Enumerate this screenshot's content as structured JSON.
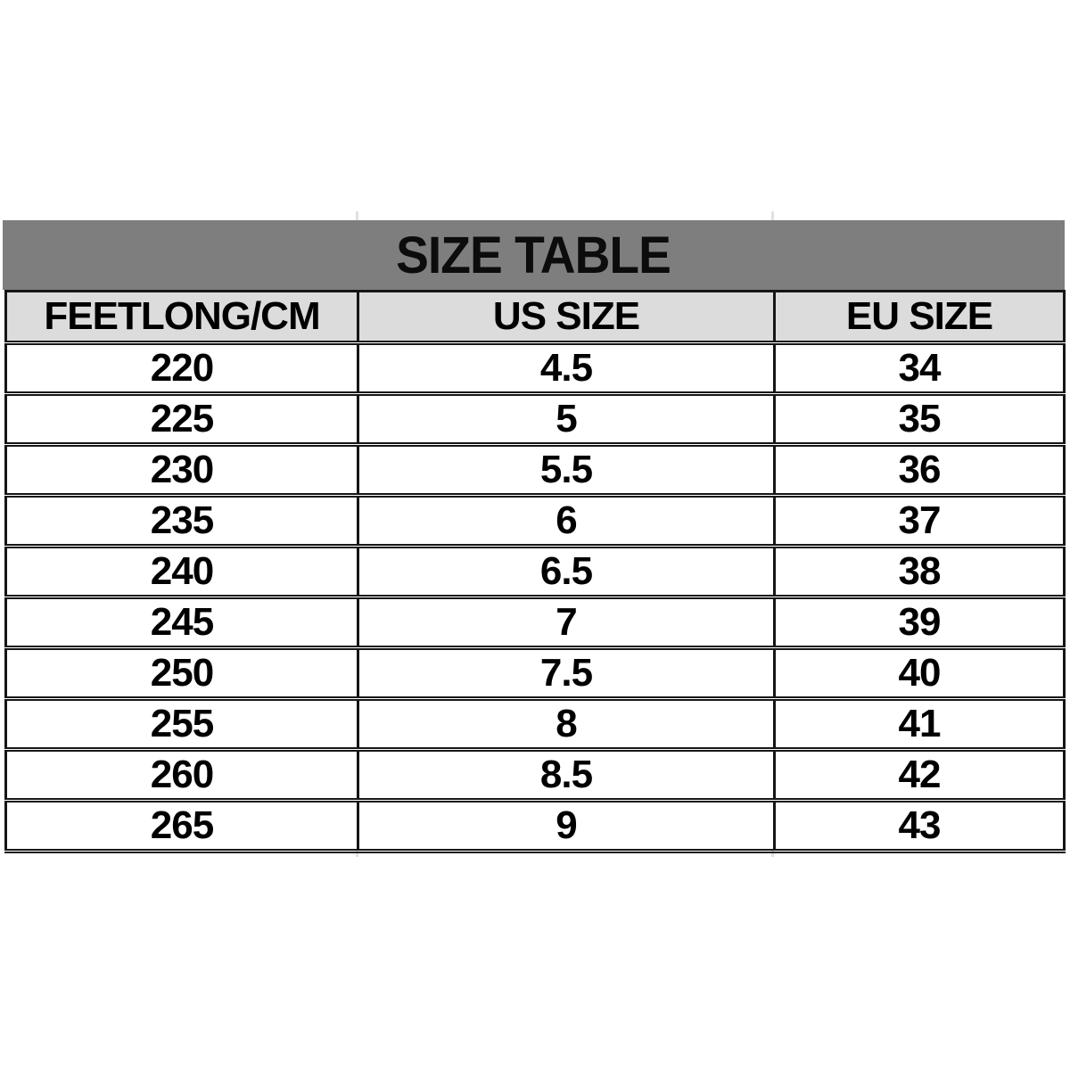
{
  "chart_data": {
    "type": "table",
    "title": "SIZE TABLE",
    "columns": [
      "FEETLONG/CM",
      "US SIZE",
      "EU SIZE"
    ],
    "rows": [
      [
        "220",
        "4.5",
        "34"
      ],
      [
        "225",
        "5",
        "35"
      ],
      [
        "230",
        "5.5",
        "36"
      ],
      [
        "235",
        "6",
        "37"
      ],
      [
        "240",
        "6.5",
        "38"
      ],
      [
        "245",
        "7",
        "39"
      ],
      [
        "250",
        "7.5",
        "40"
      ],
      [
        "255",
        "8",
        "41"
      ],
      [
        "260",
        "8.5",
        "42"
      ],
      [
        "265",
        "9",
        "43"
      ]
    ],
    "layout": {
      "legend": "none",
      "grid": "ruled table, dark double horizontal rules, solid vertical dividers"
    }
  },
  "colors": {
    "banner_background": "#7e7e7e",
    "header_row_background": "#dcdcdc",
    "data_row_background": "#ffffff",
    "border": "#161616",
    "text": "#000000",
    "page_background": "#ffffff"
  }
}
